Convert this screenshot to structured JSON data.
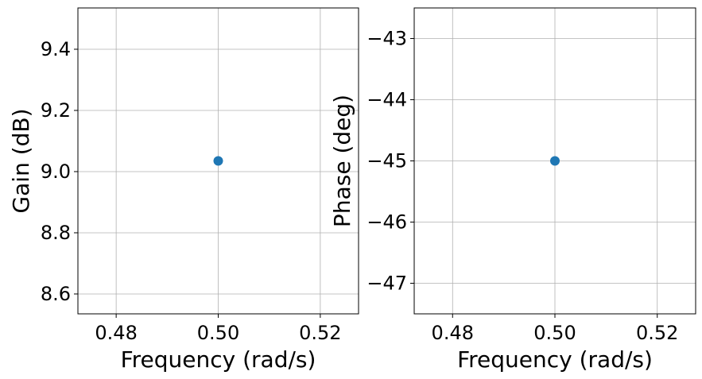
{
  "chart_data": [
    {
      "type": "scatter",
      "xlabel": "Frequency (rad/s)",
      "ylabel": "Gain (dB)",
      "xlim": [
        0.4725,
        0.5275
      ],
      "ylim": [
        8.535,
        9.535
      ],
      "xticks": [
        0.48,
        0.5,
        0.52
      ],
      "xtick_labels": [
        "0.48",
        "0.50",
        "0.52"
      ],
      "yticks": [
        8.6,
        8.8,
        9.0,
        9.2,
        9.4
      ],
      "ytick_labels": [
        "8.6",
        "8.8",
        "9.0",
        "9.2",
        "9.4"
      ],
      "grid": true,
      "points": [
        {
          "x": 0.5,
          "y": 9.035
        }
      ],
      "color": "#1f77b4"
    },
    {
      "type": "scatter",
      "xlabel": "Frequency (rad/s)",
      "ylabel": "Phase (deg)",
      "xlim": [
        0.4725,
        0.5275
      ],
      "ylim": [
        -47.5,
        -42.5
      ],
      "xticks": [
        0.48,
        0.5,
        0.52
      ],
      "xtick_labels": [
        "0.48",
        "0.50",
        "0.52"
      ],
      "yticks": [
        -47,
        -46,
        -45,
        -44,
        -43
      ],
      "ytick_labels": [
        "−47",
        "−46",
        "−45",
        "−44",
        "−43"
      ],
      "grid": true,
      "points": [
        {
          "x": 0.5,
          "y": -45.0
        }
      ],
      "color": "#1f77b4"
    }
  ]
}
